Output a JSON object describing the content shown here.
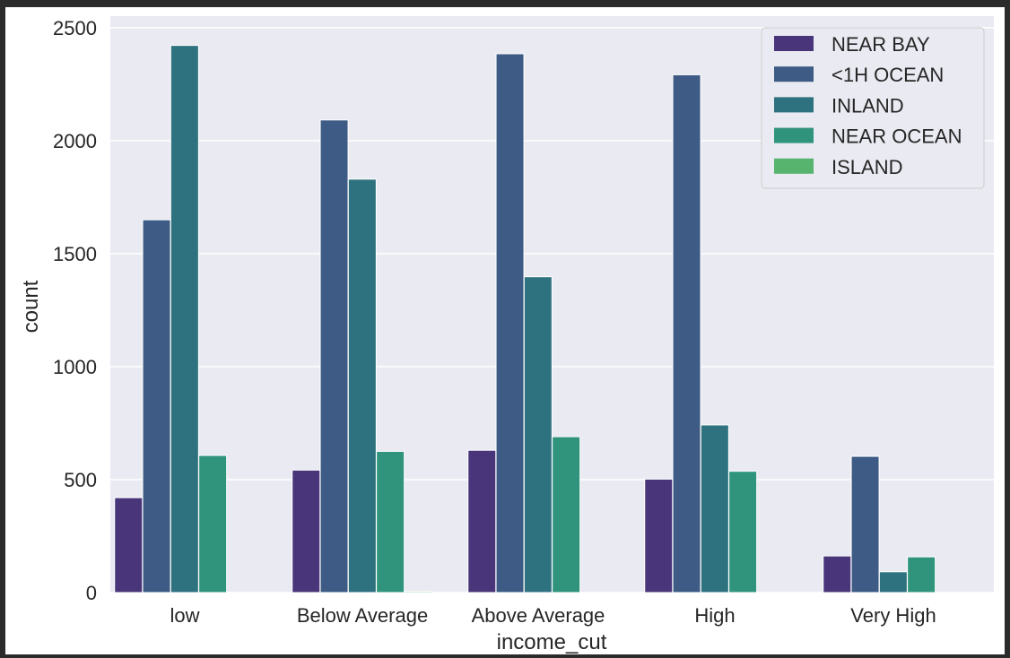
{
  "colors": {
    "background": "#eaeaf2",
    "grid": "#ffffff"
  },
  "chart_data": {
    "type": "bar",
    "title": "",
    "xlabel": "income_cut",
    "ylabel": "count",
    "categories": [
      "low",
      "Below Average",
      "Above Average",
      "High",
      "Very High"
    ],
    "ylim": [
      0,
      2550
    ],
    "yticks": [
      0,
      500,
      1000,
      1500,
      2000,
      2500
    ],
    "grid": true,
    "legend_position": "top-right",
    "series": [
      {
        "name": "NEAR BAY",
        "color": "#48357a",
        "values": [
          420,
          542,
          630,
          502,
          162
        ]
      },
      {
        "name": "<1H OCEAN",
        "color": "#3d5b84",
        "values": [
          1650,
          2092,
          2385,
          2292,
          603
        ]
      },
      {
        "name": "INLAND",
        "color": "#2f727f",
        "values": [
          2422,
          1830,
          1398,
          742,
          92
        ]
      },
      {
        "name": "NEAR OCEAN",
        "color": "#30947c",
        "values": [
          607,
          625,
          690,
          537,
          158
        ]
      },
      {
        "name": "ISLAND",
        "color": "#56b46e",
        "values": [
          0,
          5,
          0,
          0,
          0
        ]
      }
    ]
  }
}
